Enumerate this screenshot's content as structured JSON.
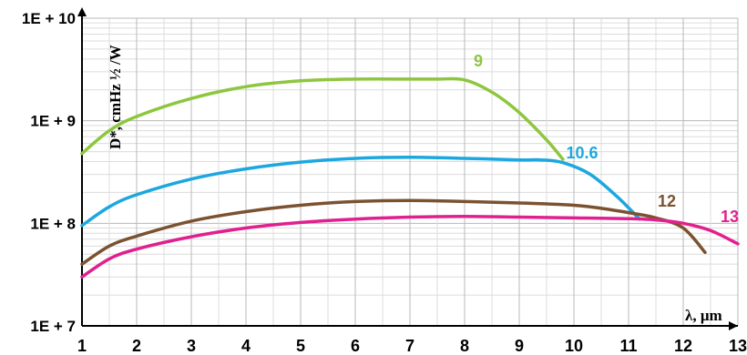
{
  "chart_data": {
    "type": "line",
    "ylabel": "D*, cmHz ½ /W",
    "xlabel": "λ, μm",
    "xlim": [
      1,
      13
    ],
    "ylim": [
      10000000,
      10000000000
    ],
    "yscale": "log",
    "grid": true,
    "xticks": [
      "1",
      "2",
      "3",
      "4",
      "5",
      "6",
      "7",
      "8",
      "9",
      "10",
      "11",
      "12",
      "13"
    ],
    "yticks": [
      "1E + 10",
      "1E + 9",
      "1E + 8",
      "1E + 7"
    ],
    "series": [
      {
        "name": "9",
        "color": "#8dc63f",
        "x": [
          1.0,
          1.5,
          2.0,
          3.0,
          4.0,
          5.0,
          6.0,
          7.0,
          7.5,
          8.0,
          8.5,
          9.0,
          9.5,
          9.8
        ],
        "y": [
          480000000,
          800000000,
          1100000000,
          1650000000,
          2150000000,
          2450000000,
          2550000000,
          2550000000,
          2550000000,
          2500000000,
          1900000000,
          1200000000,
          650000000,
          420000000
        ]
      },
      {
        "name": "10.6",
        "color": "#1ca7e0",
        "x": [
          1.0,
          1.5,
          2.0,
          3.0,
          4.0,
          5.0,
          6.0,
          7.0,
          8.0,
          9.0,
          9.4,
          9.8,
          10.3,
          10.8,
          11.2
        ],
        "y": [
          95000000,
          145000000,
          190000000,
          270000000,
          340000000,
          395000000,
          430000000,
          440000000,
          430000000,
          415000000,
          415000000,
          390000000,
          300000000,
          180000000,
          110000000
        ]
      },
      {
        "name": "12",
        "color": "#7b5230",
        "x": [
          1.0,
          1.5,
          2.0,
          3.0,
          4.0,
          5.0,
          6.0,
          7.0,
          8.0,
          9.0,
          10.0,
          10.5,
          11.0,
          11.5,
          12.0,
          12.4
        ],
        "y": [
          40000000,
          60000000,
          75000000,
          105000000,
          130000000,
          150000000,
          163000000,
          167000000,
          163000000,
          158000000,
          150000000,
          140000000,
          127000000,
          113000000,
          90000000,
          52000000
        ]
      },
      {
        "name": "13",
        "color": "#e0208f",
        "x": [
          1.0,
          1.5,
          2.0,
          3.0,
          4.0,
          5.0,
          6.0,
          7.0,
          8.0,
          9.0,
          10.0,
          11.0,
          11.5,
          12.0,
          12.5,
          13.0
        ],
        "y": [
          30000000,
          45000000,
          56000000,
          74000000,
          90000000,
          102000000,
          110000000,
          115000000,
          117000000,
          115000000,
          113000000,
          111000000,
          108000000,
          100000000,
          85000000,
          63000000
        ]
      }
    ],
    "series_labels": [
      {
        "text": "9",
        "x": 8.25,
        "y": 3400000000
      },
      {
        "text": "10.6",
        "x": 10.15,
        "y": 430000000
      },
      {
        "text": "12",
        "x": 11.7,
        "y": 145000000
      },
      {
        "text": "13",
        "x": 12.85,
        "y": 103000000
      }
    ]
  }
}
